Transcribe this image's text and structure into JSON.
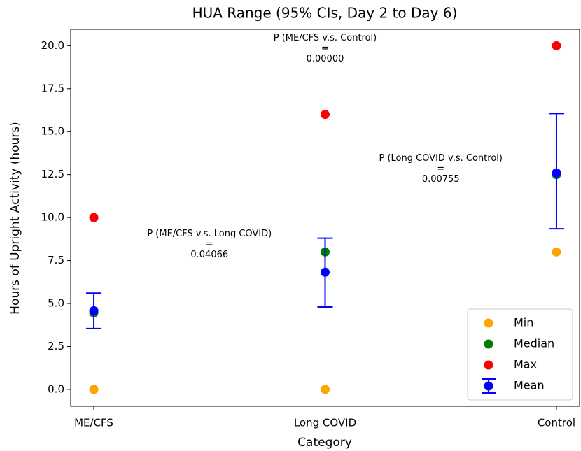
{
  "chart_data": {
    "type": "scatter",
    "title": "HUA Range (95% CIs, Day 2 to Day 6)",
    "x_label": "Category",
    "y_label": "Hours of Upright Activity (hours)",
    "categories": [
      "ME/CFS",
      "Long COVID",
      "Control"
    ],
    "xlim": [
      -0.1,
      2.1
    ],
    "ylim": [
      -0.98,
      20.95
    ],
    "yticks": [
      {
        "value": 0,
        "label": "0.0"
      },
      2.5,
      {
        "value": 5,
        "label": "5.0"
      },
      7.5,
      {
        "value": 10,
        "label": "10.0"
      },
      12.5,
      {
        "value": 15,
        "label": "15.0"
      },
      17.5,
      {
        "value": 20,
        "label": "20.0"
      }
    ],
    "legend": "lower right",
    "series": [
      {
        "name": "Min",
        "color": "#ffa500",
        "values": [
          0,
          0,
          8
        ]
      },
      {
        "name": "Median",
        "color": "#008000",
        "values": [
          4.45,
          8,
          12.5
        ]
      },
      {
        "name": "Max",
        "color": "#ff0000",
        "values": [
          10,
          16,
          20
        ]
      },
      {
        "name": "Mean",
        "color": "#0000ff",
        "values": [
          4.58,
          6.82,
          12.6
        ],
        "lower": [
          3.54,
          4.8,
          9.35
        ],
        "upper": [
          5.6,
          8.8,
          16.05
        ]
      }
    ],
    "annotations": [
      {
        "text": [
          "P (ME/CFS v.s. Control)",
          "=",
          "0.00000"
        ]
      },
      {
        "text": [
          "P (Long COVID v.s. Control)",
          "=",
          "0.00755"
        ]
      },
      {
        "text": [
          "P (ME/CFS v.s. Long COVID)",
          "=",
          "0.04066"
        ]
      }
    ]
  }
}
